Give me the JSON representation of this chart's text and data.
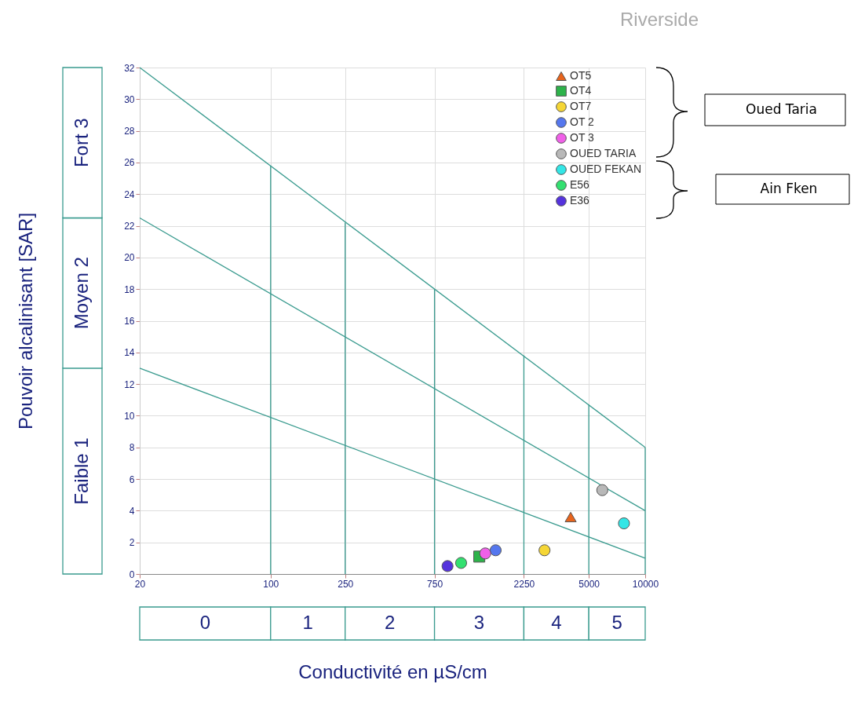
{
  "chart_data": {
    "type": "scatter",
    "title": "Riverside",
    "xlabel": "Conductivité en µS/cm",
    "ylabel": "Pouvoir alcalinisant [SAR]",
    "log": "x",
    "xlim": [
      20,
      10000
    ],
    "xticks": [
      20,
      100,
      250,
      750,
      2250,
      5000,
      10000
    ],
    "ylim": [
      0,
      32
    ],
    "yticks": [
      0,
      2,
      4,
      6,
      8,
      10,
      12,
      14,
      16,
      18,
      20,
      22,
      24,
      26,
      28,
      30,
      32
    ],
    "grid": true,
    "legend": "top right",
    "series": [
      {
        "type": "line",
        "color": "#3a9b8f",
        "x": [
          20,
          10000
        ],
        "values": [
          32,
          8
        ]
      },
      {
        "type": "line",
        "color": "#3a9b8f",
        "x": [
          20,
          10000
        ],
        "values": [
          22.5,
          4
        ]
      },
      {
        "type": "line",
        "color": "#3a9b8f",
        "x": [
          20,
          10000
        ],
        "values": [
          13,
          1
        ]
      },
      {
        "type": "line",
        "color": "#3a9b8f",
        "x": [
          100,
          100
        ],
        "values": [
          0,
          25.8
        ]
      },
      {
        "type": "line",
        "color": "#3a9b8f",
        "x": [
          250,
          250
        ],
        "values": [
          0,
          22.2
        ]
      },
      {
        "type": "line",
        "color": "#3a9b8f",
        "x": [
          750,
          750
        ],
        "values": [
          0,
          18
        ]
      },
      {
        "type": "line",
        "color": "#3a9b8f",
        "x": [
          2250,
          2250
        ],
        "values": [
          0,
          13.8
        ]
      },
      {
        "type": "line",
        "color": "#3a9b8f",
        "x": [
          5000,
          5000
        ],
        "values": [
          0,
          10.7
        ]
      },
      {
        "type": "line",
        "color": "#3a9b8f",
        "x": [
          10000,
          10000
        ],
        "values": [
          0,
          8
        ]
      },
      {
        "name": "OT5",
        "color": "#e8641c",
        "marker": "triangle",
        "x": [
          4000
        ],
        "values": [
          3.6
        ]
      },
      {
        "name": "OT4",
        "color": "#2db34a",
        "marker": "square",
        "x": [
          1300
        ],
        "values": [
          1.1
        ]
      },
      {
        "name": "OT7",
        "color": "#f5d635",
        "x": [
          2900
        ],
        "values": [
          1.5
        ]
      },
      {
        "name": "OT 2",
        "color": "#5577ee",
        "x": [
          1590
        ],
        "values": [
          1.5
        ]
      },
      {
        "name": "OT 3",
        "color": "#f060e8",
        "x": [
          1400
        ],
        "values": [
          1.3
        ]
      },
      {
        "name": "OUED TARIA",
        "color": "#b8b8b8",
        "x": [
          5900
        ],
        "values": [
          5.3
        ]
      },
      {
        "name": "OUED FEKAN",
        "color": "#33e6e6",
        "marker": "circle",
        "x": [
          7700
        ],
        "values": [
          3.2
        ]
      },
      {
        "name": "E56",
        "color": "#33e070",
        "marker": "circle",
        "x": [
          1040
        ],
        "values": [
          0.7
        ]
      },
      {
        "name": "E36",
        "color": "#5533dd",
        "marker": "circle",
        "x": [
          880
        ],
        "values": [
          0.5
        ]
      }
    ],
    "annotations": [
      "0",
      "1",
      "2",
      "3",
      "4",
      "5",
      "Faible  1",
      "Moyen  2",
      "Fort  3",
      "Oued Taria",
      "Ain Fken"
    ]
  }
}
